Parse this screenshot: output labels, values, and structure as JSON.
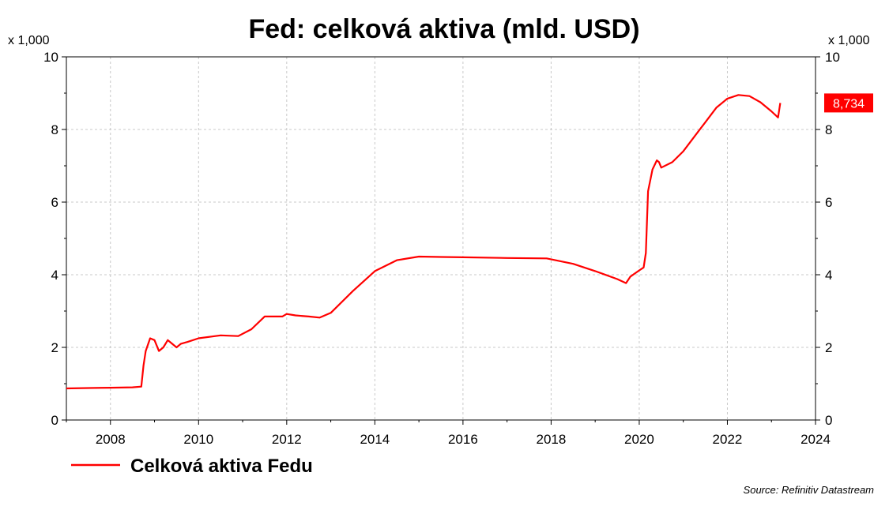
{
  "chart_data": {
    "type": "line",
    "title": "Fed: celková aktiva (mld. USD)",
    "y_multiplier_left": "x 1,000",
    "y_multiplier_right": "x 1,000",
    "xlabel": "",
    "ylabel": "",
    "xlim": [
      2007.0,
      2024.0
    ],
    "ylim": [
      0,
      10
    ],
    "x_ticks": [
      2008,
      2010,
      2012,
      2014,
      2016,
      2018,
      2020,
      2022,
      2024
    ],
    "x_tick_labels": [
      "2008",
      "2010",
      "2012",
      "2014",
      "2016",
      "2018",
      "2020",
      "2022",
      "2024"
    ],
    "y_ticks": [
      0,
      2,
      4,
      6,
      8,
      10
    ],
    "y_tick_labels": [
      "0",
      "2",
      "4",
      "6",
      "8",
      "10"
    ],
    "grid": true,
    "legend_position": "bottom-left",
    "last_value_label": "8,734",
    "source": "Source: Refinitiv Datastream",
    "colors": {
      "series": "#ff0000",
      "grid": "#c8c8c8",
      "axis": "#000000"
    },
    "series": [
      {
        "name": "Celková aktiva Fedu",
        "x": [
          2007.0,
          2007.5,
          2008.0,
          2008.5,
          2008.7,
          2008.75,
          2008.8,
          2008.9,
          2009.0,
          2009.1,
          2009.2,
          2009.3,
          2009.4,
          2009.5,
          2009.6,
          2009.75,
          2010.0,
          2010.5,
          2010.9,
          2011.2,
          2011.5,
          2011.9,
          2012.0,
          2012.2,
          2012.5,
          2012.75,
          2013.0,
          2013.5,
          2014.0,
          2014.5,
          2015.0,
          2015.5,
          2016.0,
          2017.0,
          2017.9,
          2018.5,
          2019.0,
          2019.5,
          2019.7,
          2019.8,
          2020.0,
          2020.1,
          2020.15,
          2020.2,
          2020.3,
          2020.4,
          2020.45,
          2020.5,
          2020.75,
          2021.0,
          2021.25,
          2021.5,
          2021.75,
          2022.0,
          2022.25,
          2022.5,
          2022.75,
          2023.0,
          2023.15,
          2023.2
        ],
        "y": [
          0.87,
          0.88,
          0.89,
          0.9,
          0.92,
          1.5,
          1.9,
          2.25,
          2.2,
          1.9,
          2.0,
          2.2,
          2.1,
          2.0,
          2.1,
          2.15,
          2.25,
          2.33,
          2.31,
          2.5,
          2.85,
          2.85,
          2.92,
          2.88,
          2.85,
          2.82,
          2.95,
          3.55,
          4.1,
          4.4,
          4.5,
          4.49,
          4.48,
          4.46,
          4.45,
          4.3,
          4.1,
          3.88,
          3.77,
          3.95,
          4.12,
          4.2,
          4.6,
          6.3,
          6.9,
          7.15,
          7.1,
          6.95,
          7.1,
          7.4,
          7.8,
          8.2,
          8.6,
          8.85,
          8.95,
          8.92,
          8.75,
          8.5,
          8.33,
          8.73
        ]
      }
    ]
  }
}
